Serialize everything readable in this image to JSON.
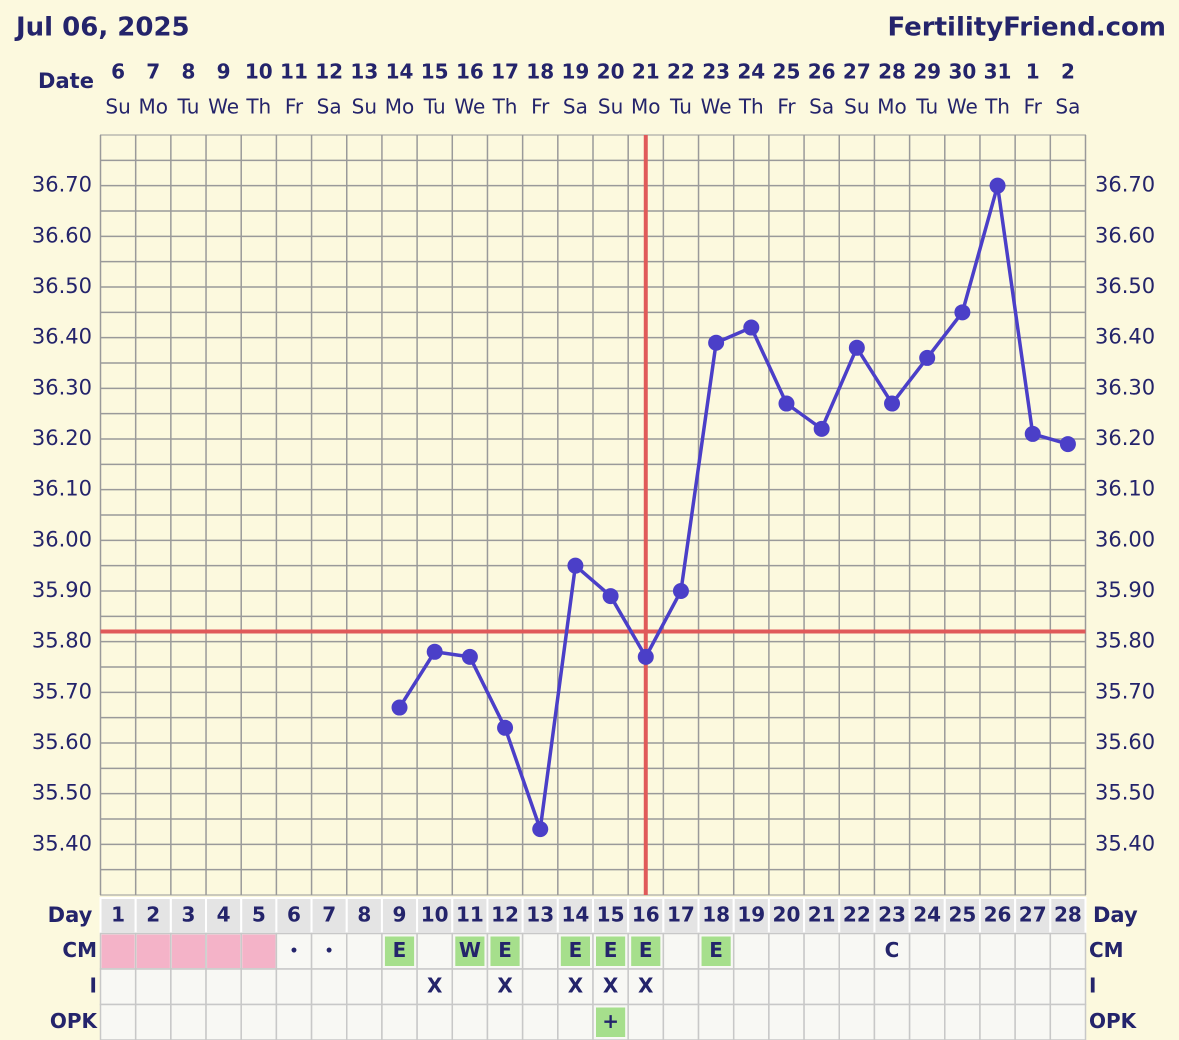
{
  "chart_data": {
    "type": "line",
    "title": "Jul 06, 2025",
    "site": "FertilityFriend.com",
    "date_label": "Date",
    "x_label": "Day",
    "categories": [
      1,
      2,
      3,
      4,
      5,
      6,
      7,
      8,
      9,
      10,
      11,
      12,
      13,
      14,
      15,
      16,
      17,
      18,
      19,
      20,
      21,
      22,
      23,
      24,
      25,
      26,
      27,
      28
    ],
    "dates": [
      "6",
      "7",
      "8",
      "9",
      "10",
      "11",
      "12",
      "13",
      "14",
      "15",
      "16",
      "17",
      "18",
      "19",
      "20",
      "21",
      "22",
      "23",
      "24",
      "25",
      "26",
      "27",
      "28",
      "29",
      "30",
      "31",
      "1",
      "2"
    ],
    "weekdays": [
      "Su",
      "Mo",
      "Tu",
      "We",
      "Th",
      "Fr",
      "Sa",
      "Su",
      "Mo",
      "Tu",
      "We",
      "Th",
      "Fr",
      "Sa",
      "Su",
      "Mo",
      "Tu",
      "We",
      "Th",
      "Fr",
      "Sa",
      "Su",
      "Mo",
      "Tu",
      "We",
      "Th",
      "Fr",
      "Sa"
    ],
    "values": [
      null,
      null,
      null,
      null,
      null,
      null,
      null,
      null,
      35.67,
      35.78,
      35.77,
      35.63,
      35.43,
      35.95,
      35.89,
      35.77,
      35.9,
      36.39,
      36.42,
      36.27,
      36.22,
      36.38,
      36.27,
      36.36,
      36.45,
      36.7,
      36.21,
      36.19
    ],
    "color": "#4b3fc8",
    "coverline": 35.82,
    "ovulation_day": 16,
    "marker_color": "#e05a5a",
    "ylim": [
      35.3,
      36.8
    ],
    "yticks": [
      {
        "value": 35.4,
        "label": "35.40"
      },
      {
        "value": 35.5,
        "label": "35.50"
      },
      {
        "value": 35.6,
        "label": "35.60"
      },
      {
        "value": 35.7,
        "label": "35.70"
      },
      {
        "value": 35.8,
        "label": "35.80"
      },
      {
        "value": 35.9,
        "label": "35.90"
      },
      {
        "value": 36.0,
        "label": "36.00"
      },
      {
        "value": 36.1,
        "label": "36.10"
      },
      {
        "value": 36.2,
        "label": "36.20"
      },
      {
        "value": 36.3,
        "label": "36.30"
      },
      {
        "value": 36.4,
        "label": "36.40"
      },
      {
        "value": 36.5,
        "label": "36.50"
      },
      {
        "value": 36.6,
        "label": "36.60"
      },
      {
        "value": 36.7,
        "label": "36.70"
      }
    ],
    "minor_yticks": [
      35.35,
      35.45,
      35.55,
      35.65,
      35.75,
      35.85,
      35.95,
      36.05,
      36.15,
      36.25,
      36.35,
      36.45,
      36.55,
      36.65,
      36.75
    ],
    "grid": true,
    "period_days": [
      1,
      2,
      3,
      4,
      5
    ],
    "rows": [
      {
        "label": "CM",
        "values": [
          null,
          null,
          null,
          null,
          null,
          "•",
          "•",
          null,
          "E",
          null,
          "W",
          "E",
          null,
          "E",
          "E",
          "E",
          null,
          "E",
          null,
          null,
          null,
          null,
          "C",
          null,
          null,
          null,
          null,
          null
        ],
        "highlight": [
          "E",
          "W"
        ]
      },
      {
        "label": "I",
        "values": [
          null,
          null,
          null,
          null,
          null,
          null,
          null,
          null,
          null,
          "X",
          null,
          "X",
          null,
          "X",
          "X",
          "X",
          null,
          null,
          null,
          null,
          null,
          null,
          null,
          null,
          null,
          null,
          null,
          null
        ]
      },
      {
        "label": "OPK",
        "values": [
          null,
          null,
          null,
          null,
          null,
          null,
          null,
          null,
          null,
          null,
          null,
          null,
          null,
          null,
          "+",
          null,
          null,
          null,
          null,
          null,
          null,
          null,
          null,
          null,
          null,
          null,
          null,
          null
        ],
        "highlight": [
          "+"
        ]
      }
    ]
  }
}
